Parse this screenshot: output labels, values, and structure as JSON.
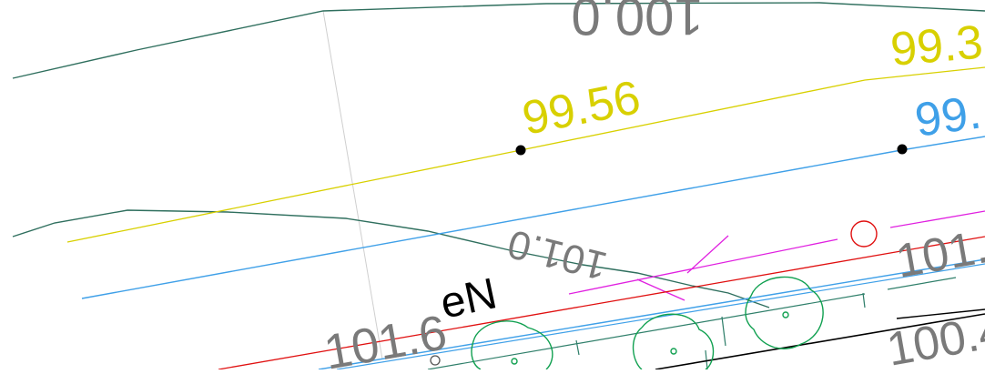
{
  "colors": {
    "background": "#ffffff",
    "contour": "#2f6f5e",
    "yellow": "#d8d000",
    "blue": "#3fa0e8",
    "red": "#e01010",
    "magenta": "#e020e0",
    "green": "#10a050",
    "gray_label": "#7a7a7a",
    "black": "#000000"
  },
  "labels": {
    "top_contour": "100.0",
    "mid_contour": "101.0",
    "yellow_left": "99.56",
    "yellow_right": "99.3",
    "blue_right": "99.",
    "elev_left": "101.6",
    "elev_right_top": "101.",
    "elev_right_bottom": "100.4",
    "tag": "eN"
  }
}
